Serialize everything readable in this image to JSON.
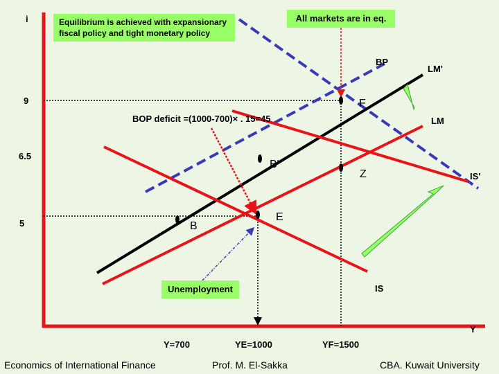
{
  "title_box": {
    "line1": "Equilibrium is achieved with expansionary",
    "line2": "fiscal policy and tight monetary policy"
  },
  "markets_label": "All markets are in eq.",
  "unemployment_label": "Unemployment",
  "bop_label": "BOP  deficit =(1000-700)× . 15=45",
  "axes": {
    "y_label": "i",
    "x_label": "Y",
    "y_ticks": [
      "9",
      "6.5",
      "5"
    ],
    "x_ticks": [
      "Y=700",
      "YE=1000",
      "YF=1500"
    ]
  },
  "curves": {
    "bp": "BP",
    "lm_prime": "LM'",
    "lm": "LM",
    "is_prime": "IS'",
    "is": "IS"
  },
  "points": {
    "f": "F",
    "b_prime": "B'",
    "z": "Z",
    "e": "E",
    "b": "B"
  },
  "footer": {
    "left": "Economics of International Finance",
    "middle": "Prof. M. El-Sakka",
    "right": "CBA. Kuwait University"
  },
  "colors": {
    "background": "#edf5e5",
    "axis": "#e8141a",
    "is_curve": "#e8141a",
    "lm_curve": "#000000",
    "bp_curve": "#3a3ab8",
    "box_fill": "#99ff66",
    "shift_arrow": "#99ff66"
  }
}
